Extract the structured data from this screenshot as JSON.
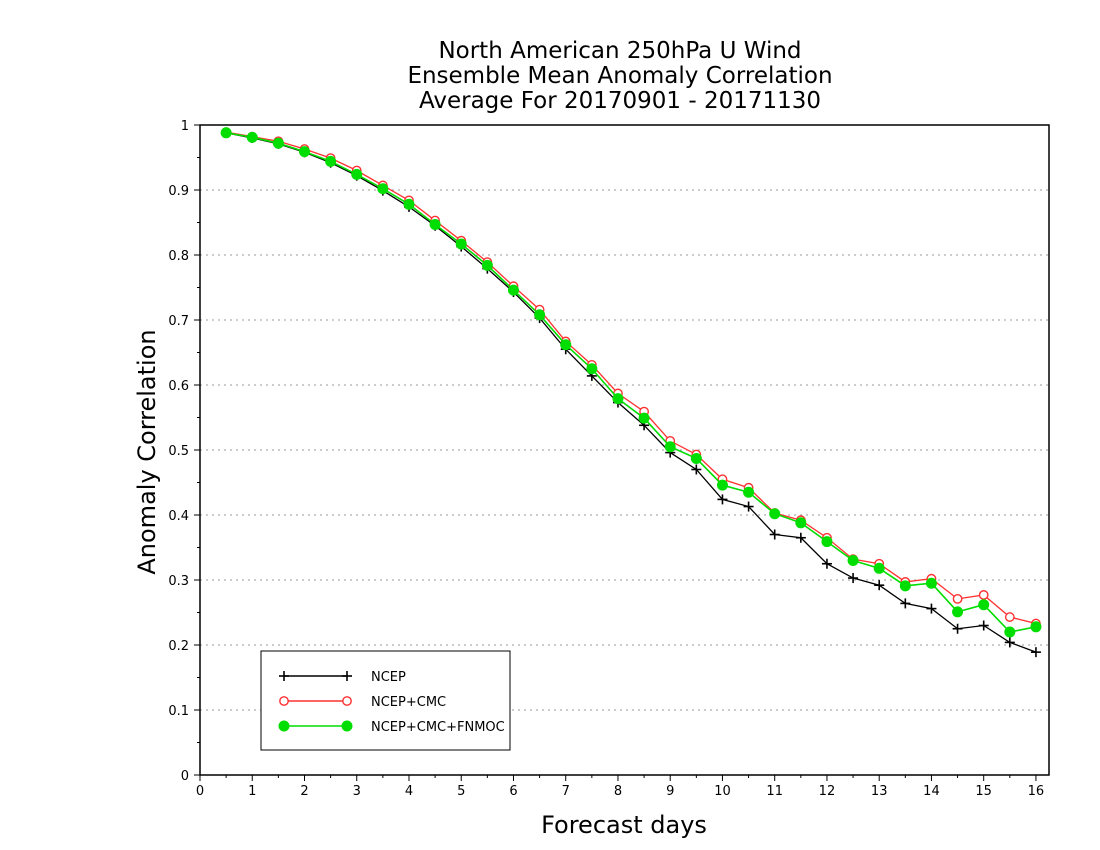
{
  "chart_data": {
    "type": "line",
    "title": [
      "North American 250hPa U Wind",
      "Ensemble Mean Anomaly Correlation",
      "Average For 20170901 - 20171130"
    ],
    "xlabel": "Forecast days",
    "ylabel": "Anomaly Correlation",
    "xlim": [
      0,
      16.25
    ],
    "ylim": [
      0,
      1
    ],
    "xticks": [
      0,
      1,
      2,
      3,
      4,
      5,
      6,
      7,
      8,
      9,
      10,
      11,
      12,
      13,
      14,
      15,
      16
    ],
    "xtick_labels": [
      "0",
      "1",
      "2",
      "3",
      "4",
      "5",
      "6",
      "7",
      "8",
      "9",
      "10",
      "11",
      "12",
      "13",
      "14",
      "15",
      "16"
    ],
    "yticks": [
      0,
      0.1,
      0.2,
      0.3,
      0.4,
      0.5,
      0.6,
      0.7,
      0.8,
      0.9,
      1
    ],
    "ytick_labels": [
      "0",
      "0.1",
      "0.2",
      "0.3",
      "0.4",
      "0.5",
      "0.6",
      "0.7",
      "0.8",
      "0.9",
      "1"
    ],
    "grid": "horizontal dotted",
    "legend_position": "bottom-left",
    "x": [
      0.5,
      1,
      1.5,
      2,
      2.5,
      3,
      3.5,
      4,
      4.5,
      5,
      5.5,
      6,
      6.5,
      7,
      7.5,
      8,
      8.5,
      9,
      9.5,
      10,
      10.5,
      11,
      11.5,
      12,
      12.5,
      13,
      13.5,
      14,
      14.5,
      15,
      15.5,
      16
    ],
    "series": [
      {
        "name": "NCEP",
        "color": "#000000",
        "marker": "plus",
        "values": [
          0.988,
          0.98,
          0.971,
          0.958,
          0.942,
          0.922,
          0.899,
          0.874,
          0.845,
          0.813,
          0.779,
          0.743,
          0.703,
          0.655,
          0.614,
          0.573,
          0.538,
          0.496,
          0.47,
          0.424,
          0.413,
          0.37,
          0.365,
          0.325,
          0.303,
          0.292,
          0.264,
          0.256,
          0.225,
          0.23,
          0.204,
          0.189
        ]
      },
      {
        "name": "NCEP+CMC",
        "color": "#ff3030",
        "marker": "open-circle",
        "values": [
          0.989,
          0.982,
          0.975,
          0.963,
          0.949,
          0.93,
          0.907,
          0.884,
          0.853,
          0.822,
          0.789,
          0.752,
          0.716,
          0.667,
          0.631,
          0.587,
          0.559,
          0.514,
          0.493,
          0.455,
          0.442,
          0.403,
          0.392,
          0.365,
          0.332,
          0.325,
          0.297,
          0.302,
          0.271,
          0.277,
          0.243,
          0.233
        ]
      },
      {
        "name": "NCEP+CMC+FNMOC",
        "color": "#00dd00",
        "marker": "filled-circle",
        "values": [
          0.988,
          0.981,
          0.972,
          0.959,
          0.944,
          0.924,
          0.902,
          0.878,
          0.847,
          0.817,
          0.784,
          0.746,
          0.708,
          0.662,
          0.625,
          0.579,
          0.549,
          0.505,
          0.487,
          0.446,
          0.435,
          0.402,
          0.388,
          0.359,
          0.33,
          0.318,
          0.291,
          0.295,
          0.251,
          0.262,
          0.22,
          0.228
        ]
      }
    ]
  }
}
